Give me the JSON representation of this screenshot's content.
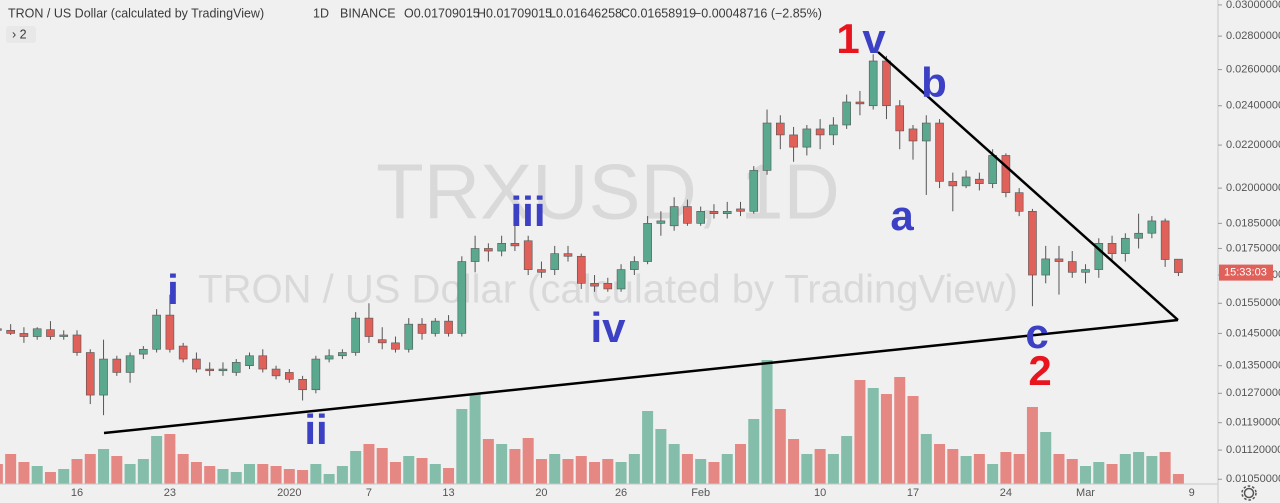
{
  "chart_data": {
    "type": "candlestick",
    "title": "TRON / US Dollar (calculated by TradingView)",
    "interval": "1D",
    "exchange": "BINANCE",
    "ohlc_labels": [
      "O0.01709015",
      "H0.01709015",
      "L0.01646258",
      "C0.01658919"
    ],
    "change_label": "−0.00048716 (−2.85%)",
    "indicators_toggle": "› 2",
    "watermark": "TRXUSD, 1D",
    "countdown": "15:33:03",
    "log_scale": true,
    "grid": false,
    "up_color": "#5aa98f",
    "down_color": "#e0605a",
    "ylim": [
      0.01039,
      0.03033
    ],
    "yticks": [
      {
        "value": 0.03,
        "label": "0.03000000"
      },
      {
        "value": 0.028,
        "label": "0.02800000"
      },
      {
        "value": 0.026,
        "label": "0.02600000"
      },
      {
        "value": 0.024,
        "label": "0.02400000"
      },
      {
        "value": 0.022,
        "label": "0.02200000"
      },
      {
        "value": 0.02,
        "label": "0.02000000"
      },
      {
        "value": 0.0185,
        "label": "0.01850000"
      },
      {
        "value": 0.0175,
        "label": "0.01750000"
      },
      {
        "value": 0.0165,
        "label": "0.01650000"
      },
      {
        "value": 0.0155,
        "label": "0.01550000"
      },
      {
        "value": 0.0145,
        "label": "0.01450000"
      },
      {
        "value": 0.0135,
        "label": "0.01350000"
      },
      {
        "value": 0.0127,
        "label": "0.01270000"
      },
      {
        "value": 0.0119,
        "label": "0.01190000"
      },
      {
        "value": 0.0112,
        "label": "0.01120000"
      },
      {
        "value": 0.0105,
        "label": "0.01050000"
      }
    ],
    "vlim": [
      0,
      484
    ],
    "categories": [
      null,
      null,
      null,
      null,
      null,
      null,
      "16",
      null,
      null,
      null,
      null,
      null,
      null,
      "23",
      null,
      null,
      null,
      null,
      null,
      null,
      null,
      null,
      "2020",
      null,
      null,
      null,
      null,
      null,
      "7",
      null,
      null,
      null,
      null,
      null,
      "13",
      null,
      null,
      null,
      null,
      null,
      null,
      "20",
      null,
      null,
      null,
      null,
      null,
      "26",
      null,
      null,
      null,
      null,
      null,
      "Feb",
      null,
      null,
      null,
      null,
      null,
      null,
      null,
      null,
      "10",
      null,
      null,
      null,
      null,
      null,
      null,
      "17",
      null,
      null,
      null,
      null,
      null,
      null,
      "24",
      null,
      null,
      null,
      null,
      null,
      "Mar",
      null,
      null,
      null,
      null,
      null,
      null,
      null,
      "9"
    ],
    "open": [
      0.01465,
      0.0146,
      0.0145,
      0.0144,
      0.01462,
      0.0144,
      0.01445,
      0.0139,
      0.01265,
      0.0137,
      0.0133,
      0.01385,
      0.014,
      0.0151,
      0.0141,
      0.0137,
      0.0134,
      0.01335,
      0.0133,
      0.0135,
      0.0138,
      0.0134,
      0.0133,
      0.0131,
      0.0128,
      0.0137,
      0.0138,
      0.0139,
      0.015,
      0.0143,
      0.0142,
      0.014,
      0.0148,
      0.0145,
      0.0149,
      0.0145,
      0.017,
      0.0175,
      0.0174,
      0.0177,
      0.0178,
      0.0167,
      0.0167,
      0.0173,
      0.0172,
      0.0162,
      0.0162,
      0.016,
      0.0167,
      0.017,
      0.0185,
      0.0184,
      0.0192,
      0.0185,
      0.019,
      0.0189,
      0.0191,
      0.019,
      0.0208,
      0.0231,
      0.0225,
      0.0219,
      0.0228,
      0.0225,
      0.023,
      0.0242,
      0.024,
      0.0265,
      0.024,
      0.0228,
      0.0222,
      0.0231,
      0.0203,
      0.0201,
      0.0204,
      0.0202,
      0.0215,
      0.0198,
      0.019,
      0.0165,
      0.0171,
      0.017,
      0.0166,
      0.0167,
      0.0177,
      0.0173,
      0.0179,
      0.0181,
      0.0186,
      0.01709015,
      null
    ],
    "high": [
      0.01475,
      0.0148,
      0.0147,
      0.0147,
      0.0149,
      0.0146,
      0.0146,
      0.014,
      0.0143,
      0.0138,
      0.0139,
      0.0141,
      0.0153,
      0.0158,
      0.0142,
      0.0139,
      0.0136,
      0.0136,
      0.0137,
      0.0139,
      0.014,
      0.0135,
      0.0134,
      0.0132,
      0.0138,
      0.014,
      0.014,
      0.0152,
      0.0155,
      0.0147,
      0.0144,
      0.015,
      0.015,
      0.015,
      0.0151,
      0.0172,
      0.018,
      0.0177,
      0.018,
      0.0184,
      0.018,
      0.017,
      0.0176,
      0.0176,
      0.0173,
      0.0165,
      0.0164,
      0.0169,
      0.0172,
      0.0188,
      0.019,
      0.0196,
      0.0195,
      0.0192,
      0.0193,
      0.0194,
      0.0194,
      0.021,
      0.0238,
      0.0235,
      0.0229,
      0.023,
      0.0233,
      0.0234,
      0.0246,
      0.0248,
      0.0269,
      0.0268,
      0.0243,
      0.023,
      0.0235,
      0.0233,
      0.0207,
      0.0208,
      0.0207,
      0.0218,
      0.0216,
      0.02,
      0.0191,
      0.0176,
      0.0176,
      0.0174,
      0.0169,
      0.0179,
      0.018,
      0.0181,
      0.0189,
      0.0188,
      0.0187,
      0.01709015,
      null
    ],
    "low": [
      0.0144,
      0.01445,
      0.0142,
      0.0143,
      0.0143,
      0.0143,
      0.0138,
      0.0124,
      0.0121,
      0.0132,
      0.013,
      0.0137,
      0.0139,
      0.0139,
      0.0136,
      0.0133,
      0.0132,
      0.0132,
      0.0132,
      0.0134,
      0.0133,
      0.0131,
      0.013,
      0.0125,
      0.0127,
      0.0136,
      0.0137,
      0.0138,
      0.0142,
      0.014,
      0.0139,
      0.0139,
      0.0143,
      0.0144,
      0.0144,
      0.0144,
      0.0166,
      0.017,
      0.0172,
      0.0174,
      0.0165,
      0.0164,
      0.0165,
      0.017,
      0.016,
      0.0159,
      0.0159,
      0.0159,
      0.0165,
      0.0169,
      0.018,
      0.0182,
      0.0184,
      0.0184,
      0.0187,
      0.0187,
      0.0188,
      0.0189,
      0.0206,
      0.0218,
      0.0212,
      0.0215,
      0.0218,
      0.022,
      0.0228,
      0.0235,
      0.0238,
      0.0233,
      0.0218,
      0.0213,
      0.0197,
      0.02,
      0.019,
      0.02,
      0.0199,
      0.02,
      0.0196,
      0.0188,
      0.0154,
      0.0162,
      0.0158,
      0.0164,
      0.0162,
      0.0164,
      0.017,
      0.017,
      0.0175,
      0.0179,
      0.0168,
      0.01646258,
      null
    ],
    "close": [
      0.0146,
      0.0145,
      0.0144,
      0.01465,
      0.0144,
      0.01445,
      0.0139,
      0.01265,
      0.0137,
      0.0133,
      0.0138,
      0.014,
      0.0151,
      0.014,
      0.0137,
      0.0134,
      0.01335,
      0.0134,
      0.0136,
      0.0138,
      0.0134,
      0.0132,
      0.0131,
      0.0128,
      0.0137,
      0.0138,
      0.0139,
      0.015,
      0.0144,
      0.0142,
      0.014,
      0.0148,
      0.0145,
      0.0149,
      0.0145,
      0.017,
      0.0175,
      0.0174,
      0.0177,
      0.0176,
      0.0167,
      0.0166,
      0.0173,
      0.0172,
      0.0162,
      0.0161,
      0.016,
      0.0167,
      0.017,
      0.0185,
      0.0186,
      0.0192,
      0.0185,
      0.019,
      0.0189,
      0.019,
      0.019,
      0.0208,
      0.0231,
      0.0225,
      0.0219,
      0.0228,
      0.0225,
      0.023,
      0.0242,
      0.0241,
      0.0265,
      0.024,
      0.0227,
      0.0222,
      0.0231,
      0.0203,
      0.0201,
      0.0205,
      0.0202,
      0.0215,
      0.0198,
      0.019,
      0.0165,
      0.0171,
      0.017,
      0.0166,
      0.0167,
      0.0177,
      0.0173,
      0.0179,
      0.0181,
      0.0186,
      0.01707635,
      0.01658919,
      null
    ],
    "volume": [
      20,
      30,
      22,
      18,
      12,
      15,
      25,
      30,
      35,
      28,
      20,
      25,
      48,
      50,
      30,
      22,
      18,
      15,
      12,
      20,
      20,
      18,
      15,
      14,
      20,
      10,
      18,
      33,
      40,
      36,
      22,
      28,
      26,
      20,
      16,
      75,
      90,
      45,
      40,
      35,
      46,
      25,
      30,
      25,
      28,
      22,
      25,
      22,
      30,
      73,
      55,
      40,
      30,
      25,
      22,
      30,
      40,
      65,
      124,
      75,
      45,
      30,
      35,
      30,
      48,
      104,
      96,
      90,
      107,
      88,
      50,
      40,
      35,
      28,
      30,
      20,
      32,
      30,
      77,
      52,
      30,
      25,
      18,
      22,
      20,
      30,
      32,
      28,
      32,
      10,
      null
    ],
    "annotations": [
      "i",
      "ii",
      "iii",
      "iv",
      "1",
      "v",
      "a",
      "b",
      "c",
      "2"
    ]
  }
}
